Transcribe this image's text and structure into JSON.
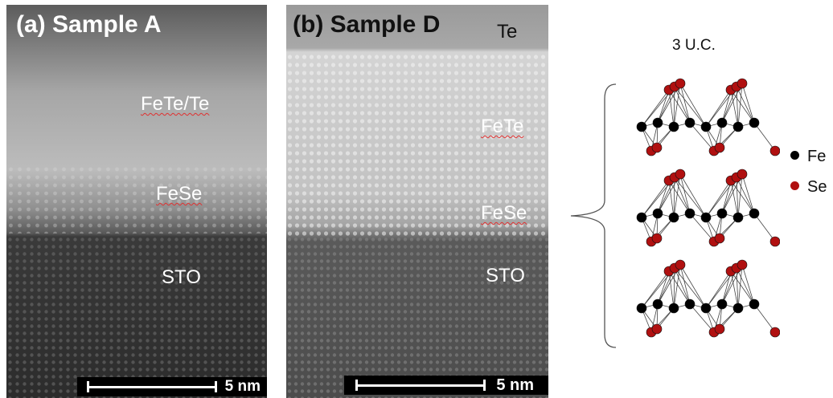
{
  "panel_a": {
    "title": "(a) Sample A",
    "layers": {
      "fete_te": "FeTe/Te",
      "fese": "FeSe",
      "sto": "STO"
    },
    "scale_label": "5 nm"
  },
  "panel_b": {
    "title": "(b) Sample D",
    "layers": {
      "te": "Te",
      "fete": "FeTe",
      "fese": "FeSe",
      "sto": "STO"
    },
    "scale_label": "5 nm"
  },
  "schematic": {
    "label": "3 U.C.",
    "legend": [
      {
        "label": "Fe",
        "color": "#000000"
      },
      {
        "label": "Se",
        "color": "#b01010"
      }
    ]
  }
}
